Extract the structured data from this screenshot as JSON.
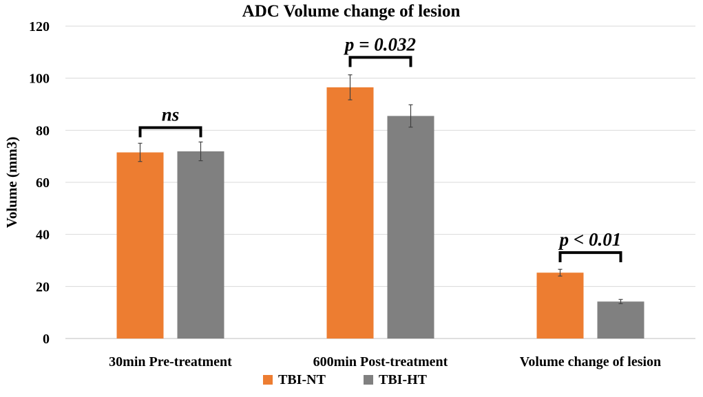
{
  "chart_data": {
    "type": "bar",
    "title": "ADC Volume change of lesion",
    "xlabel": "",
    "ylabel": "Volume (mm3)",
    "ylim": [
      0,
      120
    ],
    "yticks": [
      0,
      20,
      40,
      60,
      80,
      100,
      120
    ],
    "grid": true,
    "legend_position": "bottom",
    "categories": [
      "30min Pre-treatment",
      "600min Post-treatment",
      "Volume change of lesion"
    ],
    "series": [
      {
        "name": "TBI-NT",
        "color": "#ed7d31",
        "values": [
          71.5,
          96.5,
          25.3
        ],
        "errors": [
          3.5,
          4.8,
          1.3
        ]
      },
      {
        "name": "TBI-HT",
        "color": "#808080",
        "values": [
          71.9,
          85.5,
          14.2
        ],
        "errors": [
          3.6,
          4.3,
          0.8
        ]
      }
    ],
    "annotations": [
      {
        "category": 0,
        "text": "ns",
        "bracket_y": 81
      },
      {
        "category": 1,
        "text": "p = 0.032",
        "bracket_y": 108
      },
      {
        "category": 2,
        "text": "p < 0.01",
        "bracket_y": 33
      }
    ]
  }
}
